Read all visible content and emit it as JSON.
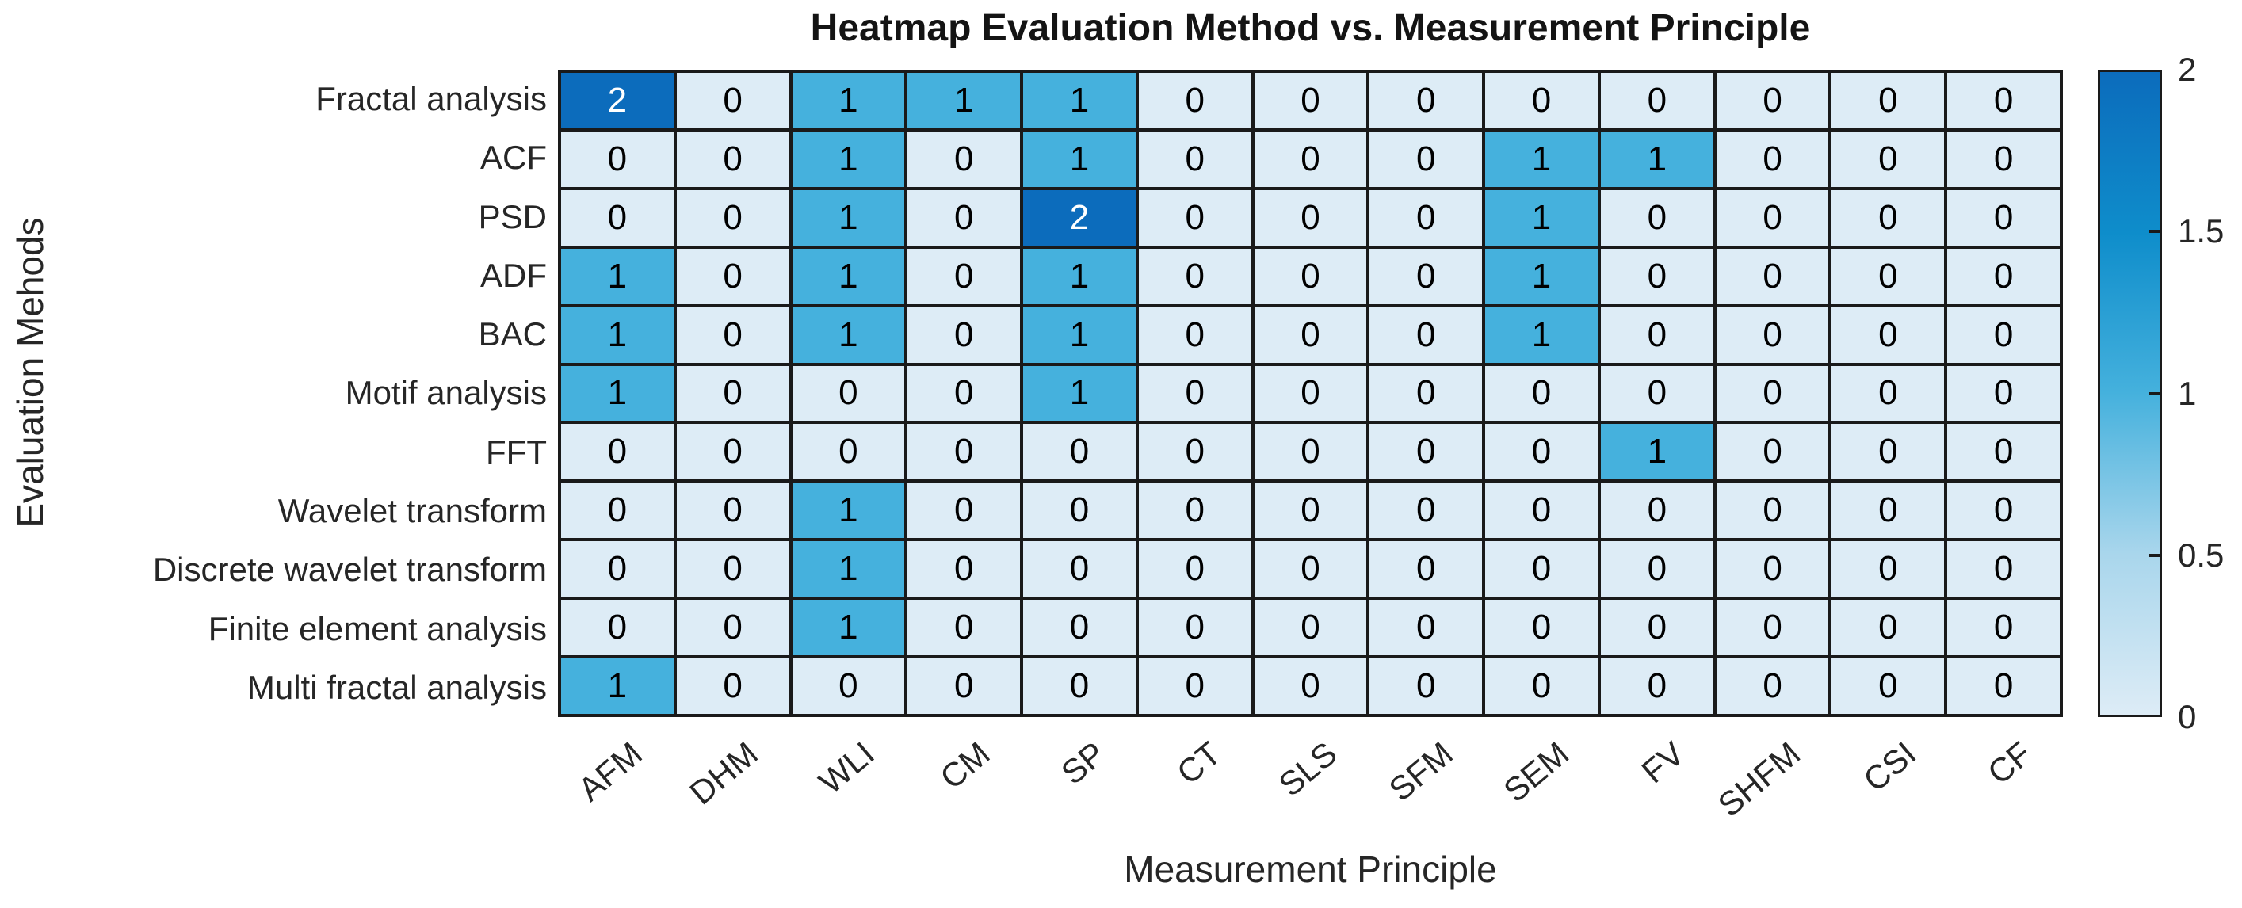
{
  "figure": {
    "title": "Heatmap Evaluation Method vs. Measurement Principle",
    "xlabel": "Measurement Principle",
    "ylabel": "Evaluation Mehods"
  },
  "chart_data": {
    "type": "heatmap",
    "title": "Heatmap Evaluation Method vs. Measurement Principle",
    "xlabel": "Measurement Principle",
    "ylabel": "Evaluation Mehods",
    "columns": [
      "AFM",
      "DHM",
      "WLI",
      "CM",
      "SP",
      "CT",
      "SLS",
      "SFM",
      "SEM",
      "FV",
      "SHFM",
      "CSI",
      "CF"
    ],
    "rows": [
      "Fractal analysis",
      "ACF",
      "PSD",
      "ADF",
      "BAC",
      "Motif analysis",
      "FFT",
      "Wavelet transform",
      "Discrete wavelet transform",
      "Finite element analysis",
      "Multi fractal analysis"
    ],
    "values": [
      [
        2,
        0,
        1,
        1,
        1,
        0,
        0,
        0,
        0,
        0,
        0,
        0,
        0
      ],
      [
        0,
        0,
        1,
        0,
        1,
        0,
        0,
        0,
        1,
        1,
        0,
        0,
        0
      ],
      [
        0,
        0,
        1,
        0,
        2,
        0,
        0,
        0,
        1,
        0,
        0,
        0,
        0
      ],
      [
        1,
        0,
        1,
        0,
        1,
        0,
        0,
        0,
        1,
        0,
        0,
        0,
        0
      ],
      [
        1,
        0,
        1,
        0,
        1,
        0,
        0,
        0,
        1,
        0,
        0,
        0,
        0
      ],
      [
        1,
        0,
        0,
        0,
        1,
        0,
        0,
        0,
        0,
        0,
        0,
        0,
        0
      ],
      [
        0,
        0,
        0,
        0,
        0,
        0,
        0,
        0,
        0,
        1,
        0,
        0,
        0
      ],
      [
        0,
        0,
        1,
        0,
        0,
        0,
        0,
        0,
        0,
        0,
        0,
        0,
        0
      ],
      [
        0,
        0,
        1,
        0,
        0,
        0,
        0,
        0,
        0,
        0,
        0,
        0,
        0
      ],
      [
        0,
        0,
        1,
        0,
        0,
        0,
        0,
        0,
        0,
        0,
        0,
        0,
        0
      ],
      [
        1,
        0,
        0,
        0,
        0,
        0,
        0,
        0,
        0,
        0,
        0,
        0,
        0
      ]
    ],
    "value_range": [
      0,
      2
    ],
    "grid_on": true,
    "legend_position": "right-colorbar",
    "colorbar": {
      "min": 0,
      "max": 2,
      "ticks": [
        0,
        0.5,
        1,
        1.5,
        2
      ],
      "tick_labels": [
        "0",
        "0.5",
        "1",
        "1.5",
        "2"
      ]
    },
    "colors": {
      "scale_stops": [
        "#ddecf6",
        "#a9d6ec",
        "#45b1dd",
        "#0e8dcb",
        "#0c6cbc"
      ],
      "grid_line": "#1a1a1a",
      "cell_text_dark": "#000000",
      "cell_text_light": "#ffffff",
      "label_text": "#262626",
      "title_text": "#141414",
      "background": "#ffffff"
    }
  }
}
